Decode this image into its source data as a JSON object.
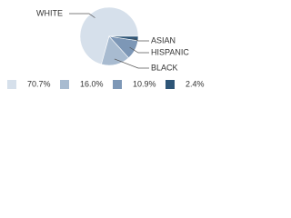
{
  "chart_data": {
    "type": "pie",
    "categories": [
      "WHITE",
      "BLACK",
      "HISPANIC",
      "ASIAN"
    ],
    "values": [
      70.7,
      16.0,
      10.9,
      2.4
    ],
    "value_labels": [
      "70.7%",
      "16.0%",
      "10.9%",
      "2.4%"
    ],
    "colors": [
      "#d6e0eb",
      "#a8bbd0",
      "#7d97b6",
      "#2e5577"
    ],
    "legend": "bottom"
  }
}
